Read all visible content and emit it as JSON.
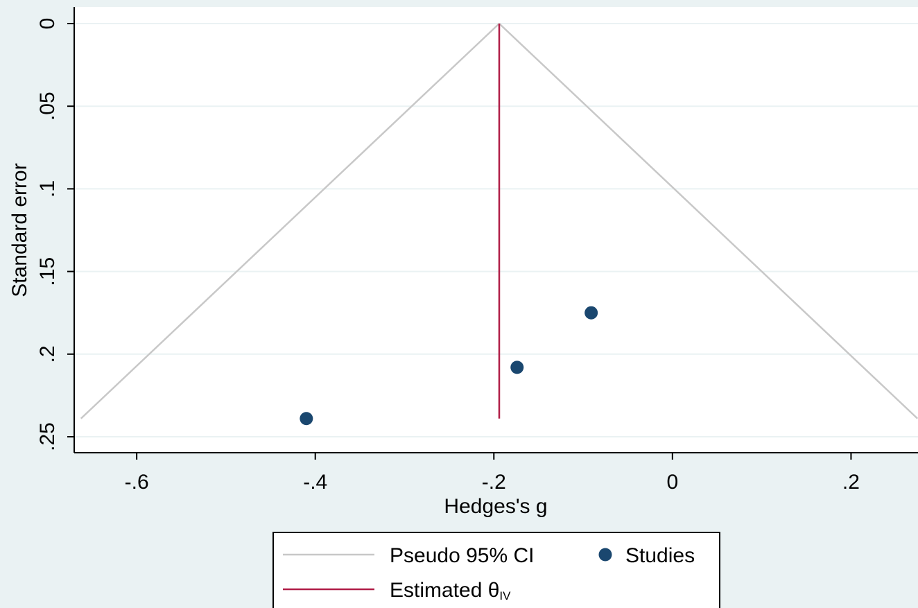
{
  "chart_data": {
    "type": "scatter",
    "title": "",
    "xlabel": "Hedges's g",
    "ylabel": "Standard error",
    "xlim": [
      -0.67,
      0.275
    ],
    "ylim": [
      0,
      0.26
    ],
    "y_reversed": true,
    "x_ticks": [
      {
        "value": -0.6,
        "label": "-.6"
      },
      {
        "value": -0.4,
        "label": "-.4"
      },
      {
        "value": -0.2,
        "label": "-.2"
      },
      {
        "value": 0,
        "label": "0"
      },
      {
        "value": 0.2,
        "label": ".2"
      }
    ],
    "y_ticks": [
      {
        "value": 0,
        "label": "0"
      },
      {
        "value": 0.05,
        "label": ".05"
      },
      {
        "value": 0.1,
        "label": ".1"
      },
      {
        "value": 0.15,
        "label": ".15"
      },
      {
        "value": 0.2,
        "label": ".2"
      },
      {
        "value": 0.25,
        "label": ".25"
      }
    ],
    "grid": {
      "horizontal": true,
      "vertical": false
    },
    "estimate": -0.194,
    "se_max": 0.239,
    "ci_z": 1.96,
    "studies": [
      {
        "x": -0.41,
        "y": 0.239
      },
      {
        "x": -0.174,
        "y": 0.208
      },
      {
        "x": -0.091,
        "y": 0.175
      }
    ],
    "legend": {
      "placement": "bottom-center",
      "entries": [
        {
          "key": "ci",
          "label": "Pseudo 95% CI",
          "type": "line",
          "color": "#c8c8c8"
        },
        {
          "key": "studies",
          "label": "Studies",
          "type": "marker",
          "color": "#1a476f"
        },
        {
          "key": "estimate",
          "label": "Estimated θ",
          "subscript": "IV",
          "type": "line",
          "color": "#b01e47"
        }
      ]
    },
    "colors": {
      "background": "#eaf2f3",
      "plot_background": "#ffffff",
      "grid": "#eaf2f3",
      "ci_line": "#c8c8c8",
      "estimate_line": "#b01e47",
      "study_marker": "#1a476f",
      "axis": "#000000"
    }
  }
}
